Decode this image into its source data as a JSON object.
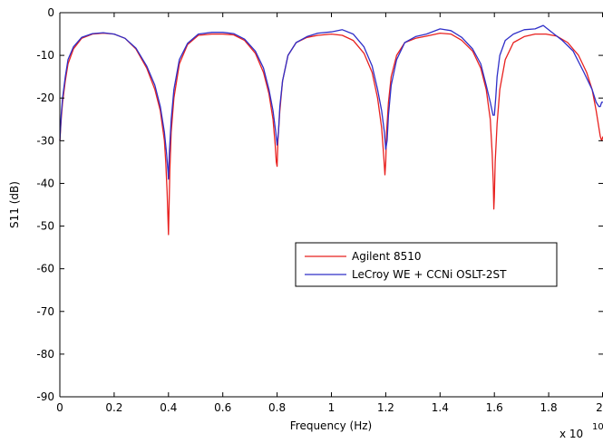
{
  "chart_data": {
    "type": "line",
    "title": "",
    "xlabel": "Frequency (Hz)",
    "ylabel": "S11 (dB)",
    "x_multiplier": "x 10",
    "x_multiplier_exponent": "10",
    "xlim": [
      0,
      2.0
    ],
    "ylim": [
      -90,
      0
    ],
    "x_ticks": [
      0,
      0.2,
      0.4,
      0.6,
      0.8,
      1,
      1.2,
      1.4,
      1.6,
      1.8,
      2
    ],
    "x_tick_labels": [
      "0",
      "0.2",
      "0.4",
      "0.6",
      "0.8",
      "1",
      "1.2",
      "1.4",
      "1.6",
      "1.8",
      "2"
    ],
    "y_ticks": [
      0,
      -10,
      -20,
      -30,
      -40,
      -50,
      -60,
      -70,
      -80,
      -90
    ],
    "y_tick_labels": [
      "0",
      "-10",
      "-20",
      "-30",
      "-40",
      "-50",
      "-60",
      "-70",
      "-80",
      "-90"
    ],
    "grid": false,
    "legend_position": "center-right",
    "series": [
      {
        "name": "Agilent 8510",
        "color": "#e8211f",
        "x": [
          0.0,
          0.005,
          0.01,
          0.02,
          0.03,
          0.05,
          0.08,
          0.12,
          0.16,
          0.2,
          0.24,
          0.28,
          0.32,
          0.35,
          0.37,
          0.385,
          0.39,
          0.395,
          0.398,
          0.4,
          0.402,
          0.405,
          0.41,
          0.42,
          0.44,
          0.47,
          0.51,
          0.56,
          0.6,
          0.64,
          0.68,
          0.72,
          0.75,
          0.77,
          0.785,
          0.793,
          0.797,
          0.8,
          0.803,
          0.81,
          0.82,
          0.84,
          0.87,
          0.91,
          0.95,
          1.0,
          1.04,
          1.08,
          1.12,
          1.15,
          1.17,
          1.185,
          1.193,
          1.197,
          1.2,
          1.203,
          1.21,
          1.22,
          1.24,
          1.27,
          1.31,
          1.35,
          1.4,
          1.44,
          1.48,
          1.52,
          1.55,
          1.57,
          1.585,
          1.592,
          1.596,
          1.598,
          1.6,
          1.603,
          1.61,
          1.62,
          1.64,
          1.67,
          1.71,
          1.75,
          1.79,
          1.83,
          1.87,
          1.91,
          1.94,
          1.96,
          1.975,
          1.985,
          1.99,
          1.995,
          2.0
        ],
        "y": [
          -30,
          -25,
          -21,
          -16,
          -12,
          -8.5,
          -6,
          -5,
          -4.8,
          -5,
          -6,
          -8.5,
          -13,
          -18,
          -23,
          -30,
          -35,
          -42,
          -48,
          -52,
          -46,
          -37,
          -28,
          -20,
          -12,
          -7.5,
          -5.3,
          -5,
          -5,
          -5.2,
          -6.5,
          -9.5,
          -14,
          -19,
          -25,
          -31,
          -35,
          -36,
          -30,
          -23,
          -16,
          -10,
          -7,
          -5.8,
          -5.3,
          -5,
          -5.3,
          -6.5,
          -9.5,
          -14,
          -20,
          -27,
          -34,
          -38,
          -35,
          -28,
          -21,
          -15,
          -10,
          -7,
          -6,
          -5.5,
          -4.8,
          -5,
          -6.5,
          -9,
          -13,
          -18,
          -25,
          -33,
          -40,
          -46,
          -43,
          -35,
          -26,
          -18,
          -11,
          -7,
          -5.6,
          -5,
          -5,
          -5.5,
          -7,
          -10,
          -14,
          -18,
          -23,
          -27,
          -29,
          -30,
          -29
        ]
      },
      {
        "name": "LeCroy WE + CCNi OSLT-2ST",
        "color": "#2f2fc8",
        "x": [
          0.0,
          0.005,
          0.01,
          0.02,
          0.03,
          0.05,
          0.08,
          0.12,
          0.16,
          0.2,
          0.24,
          0.28,
          0.32,
          0.35,
          0.37,
          0.385,
          0.393,
          0.398,
          0.4,
          0.403,
          0.41,
          0.42,
          0.44,
          0.47,
          0.51,
          0.56,
          0.6,
          0.64,
          0.68,
          0.72,
          0.75,
          0.77,
          0.785,
          0.795,
          0.8,
          0.805,
          0.81,
          0.82,
          0.84,
          0.87,
          0.91,
          0.95,
          1.0,
          1.04,
          1.08,
          1.12,
          1.15,
          1.17,
          1.185,
          1.195,
          1.2,
          1.205,
          1.21,
          1.22,
          1.24,
          1.27,
          1.31,
          1.35,
          1.4,
          1.44,
          1.48,
          1.52,
          1.55,
          1.57,
          1.585,
          1.595,
          1.6,
          1.605,
          1.61,
          1.62,
          1.64,
          1.67,
          1.71,
          1.75,
          1.78,
          1.81,
          1.85,
          1.89,
          1.93,
          1.96,
          1.975,
          1.985,
          1.99,
          1.995,
          2.0
        ],
        "y": [
          -30,
          -24,
          -20,
          -15,
          -11,
          -8,
          -5.8,
          -4.9,
          -4.7,
          -5,
          -6,
          -8.3,
          -12.5,
          -17,
          -22,
          -28,
          -33,
          -37,
          -39,
          -33,
          -25,
          -18,
          -11,
          -7.2,
          -5,
          -4.6,
          -4.6,
          -4.9,
          -6.2,
          -9,
          -13,
          -18,
          -23,
          -28,
          -31,
          -28,
          -22,
          -16,
          -10,
          -7,
          -5.6,
          -4.8,
          -4.5,
          -4,
          -5,
          -8,
          -12.5,
          -18,
          -23,
          -28,
          -32,
          -30,
          -24,
          -17,
          -11,
          -7,
          -5.6,
          -5,
          -3.8,
          -4.2,
          -5.8,
          -8.5,
          -12,
          -17,
          -21,
          -24,
          -24,
          -20,
          -15,
          -10,
          -6.5,
          -5,
          -4,
          -3.8,
          -3,
          -4.5,
          -6.5,
          -9,
          -14,
          -18,
          -21,
          -22,
          -22,
          -21,
          -21
        ]
      }
    ]
  }
}
